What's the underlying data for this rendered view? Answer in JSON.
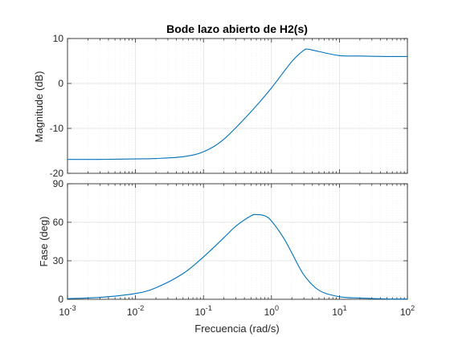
{
  "chart_data": {
    "type": "line",
    "title": "Bode lazo abierto de H2(s)",
    "xlabel": "Frecuencia  (rad/s)",
    "xscale": "log",
    "xlim": [
      0.001,
      100
    ],
    "x_tick_labels": [
      "10",
      "10",
      "10",
      "10",
      "10",
      "10"
    ],
    "x_tick_exponents": [
      "-3",
      "-2",
      "-1",
      "0",
      "1",
      "2"
    ],
    "series_color": "#0072bd",
    "grid": true,
    "panels": [
      {
        "name": "magnitude",
        "ylabel": "Magnitude (dB)",
        "ylim": [
          -20,
          10
        ],
        "y_ticks": [
          -20,
          -10,
          0,
          10
        ],
        "y_tick_labels": [
          "-20",
          "-10",
          "0",
          "10"
        ],
        "series": [
          {
            "x": [
              0.001,
              0.003,
              0.01,
              0.02,
              0.05,
              0.1,
              0.2,
              0.5,
              1,
              2,
              3,
              3.5,
              5,
              10,
              20,
              50,
              100
            ],
            "values": [
              -16.9,
              -16.9,
              -16.8,
              -16.7,
              -16.3,
              -15.2,
              -12.4,
              -6.3,
              -1.0,
              4.9,
              7.4,
              7.6,
              7.1,
              6.2,
              6.1,
              6.0,
              6.0
            ]
          }
        ]
      },
      {
        "name": "phase",
        "ylabel": "Fase (deg)",
        "ylim": [
          0,
          90
        ],
        "y_ticks": [
          0,
          30,
          60,
          90
        ],
        "y_tick_labels": [
          "0",
          "30",
          "60",
          "90"
        ],
        "series": [
          {
            "x": [
              0.001,
              0.003,
              0.01,
              0.02,
              0.05,
              0.1,
              0.2,
              0.3,
              0.5,
              0.6,
              0.8,
              1,
              1.5,
              2,
              3,
              5,
              10,
              20,
              50,
              100
            ],
            "values": [
              0.5,
              1.5,
              4.5,
              9,
              20,
              33,
              48,
              57,
              65,
              66,
              65,
              61,
              48,
              36,
              19,
              7,
              2,
              1,
              0.3,
              0.2
            ]
          }
        ]
      }
    ]
  }
}
